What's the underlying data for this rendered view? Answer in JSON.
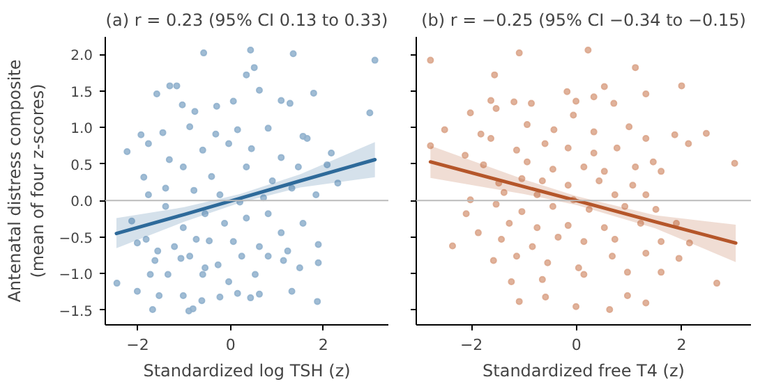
{
  "chart_data": [
    {
      "type": "scatter",
      "title": "(a) r = 0.23 (95% CI 0.13 to 0.33)",
      "xlabel": "Standardized log TSH (z)",
      "ylabel": "Antenatal distress composite\n(mean of four z-scores)",
      "xlim": [
        -2.7,
        3.4
      ],
      "ylim": [
        -1.7,
        2.24
      ],
      "xticks": [
        {
          "value": -2,
          "label": "−2"
        },
        {
          "value": 0,
          "label": "0"
        },
        {
          "value": 2,
          "label": "2"
        }
      ],
      "yticks": [
        {
          "value": -1.5,
          "label": "−1.5"
        },
        {
          "value": -1.0,
          "label": "−1.0"
        },
        {
          "value": -0.5,
          "label": "−0.5"
        },
        {
          "value": 0,
          "label": "0.0"
        },
        {
          "value": 0.5,
          "label": "0.5"
        },
        {
          "value": 1,
          "label": "1.0"
        },
        {
          "value": 1.5,
          "label": "1.5"
        },
        {
          "value": 2,
          "label": "2.0"
        }
      ],
      "grid": false,
      "ref_lines": [
        {
          "axis": "y",
          "value": 0,
          "color": "#bbbbbb"
        }
      ],
      "series": [
        {
          "type": "scatter",
          "marker": "circle",
          "color": "#8fb0cc",
          "x": [
            -0.58,
            0.43,
            1.35,
            3.11,
            0.51,
            0.34,
            -1.31,
            -1.16,
            -1.59,
            1.79,
            3.0,
            -1.04,
            -0.3,
            0.06,
            0.62,
            1.09,
            1.28,
            -0.77,
            -1.93,
            -1.46,
            -0.88,
            -0.32,
            0.15,
            0.81,
            1.56,
            1.65,
            -2.23,
            -1.77,
            -0.6,
            -0.04,
            0.45,
            1.09,
            2.17,
            -1.87,
            -1.32,
            -1.02,
            -0.41,
            0.34,
            0.9,
            1.46,
            2.08,
            2.31,
            -1.77,
            -1.4,
            -0.79,
            -0.23,
            0.2,
            0.71,
            1.32,
            1.84,
            -2.13,
            -1.4,
            -1.02,
            -0.55,
            -0.13,
            0.34,
            0.81,
            1.09,
            1.56,
            -2.45,
            -2.01,
            -1.82,
            -1.57,
            -1.21,
            -0.74,
            -0.46,
            0.06,
            0.62,
            1.23,
            1.89,
            -1.63,
            -1.07,
            -0.88,
            -0.55,
            -0.27,
            0.24,
            0.81,
            1.14,
            1.89,
            -1.73,
            -1.35,
            -0.6,
            -0.04,
            0.53,
            1.49,
            -2.01,
            -1.54,
            -1.02,
            -0.23,
            0.15,
            0.62,
            1.32,
            -1.68,
            -0.9,
            -0.62,
            0.43,
            1.87,
            -0.81
          ],
          "values": [
            2.02,
            2.06,
            2.01,
            1.92,
            1.82,
            1.72,
            1.57,
            1.57,
            1.46,
            1.47,
            1.2,
            1.31,
            1.29,
            1.36,
            1.51,
            1.37,
            1.33,
            1.22,
            0.9,
            0.93,
            1.01,
            0.91,
            0.97,
            0.99,
            0.88,
            0.85,
            0.67,
            0.78,
            0.69,
            0.78,
            0.71,
            0.59,
            0.65,
            0.32,
            0.56,
            0.46,
            0.33,
            0.46,
            0.27,
            0.46,
            0.49,
            0.24,
            0.08,
            0.17,
            0.14,
            0.08,
            -0.02,
            0.04,
            0.17,
            0.08,
            -0.28,
            -0.08,
            -0.37,
            -0.18,
            -0.31,
            -0.24,
            -0.18,
            -0.44,
            -0.31,
            -1.13,
            -0.58,
            -0.53,
            -0.69,
            -0.63,
            -0.53,
            -0.55,
            -0.56,
            -0.63,
            -0.69,
            -0.6,
            -0.82,
            -0.79,
            -0.76,
            -0.92,
            -0.88,
            -0.76,
            -0.76,
            -0.82,
            -0.85,
            -1.01,
            -1.01,
            -1.01,
            -1.11,
            -1.01,
            -0.92,
            -1.24,
            -1.3,
            -1.3,
            -1.32,
            -1.27,
            -1.28,
            -1.24,
            -1.49,
            -1.51,
            -1.37,
            -1.33,
            -1.38,
            -1.48
          ]
        },
        {
          "type": "line",
          "color": "#2e6a9a",
          "x": [
            -2.46,
            -1,
            0.2,
            1.5,
            3.11
          ],
          "values": [
            -0.45,
            -0.19,
            0.03,
            0.27,
            0.56
          ],
          "lower": [
            -0.65,
            -0.29,
            -0.03,
            0.18,
            0.32
          ],
          "upper": [
            -0.24,
            -0.09,
            0.09,
            0.36,
            0.8
          ]
        }
      ]
    },
    {
      "type": "scatter",
      "title": "(b) r = −0.25 (95% CI −0.34 to −0.15)",
      "xlabel": "Standardized free T4 (z)",
      "xlim": [
        -3.05,
        3.32
      ],
      "ylim": [
        -1.7,
        2.24
      ],
      "xticks": [
        {
          "value": -2,
          "label": "−2"
        },
        {
          "value": 0,
          "label": "0"
        },
        {
          "value": 2,
          "label": "2"
        }
      ],
      "yticks": [
        -1.5,
        -1,
        -0.5,
        0,
        0.5,
        1,
        1.5,
        2
      ],
      "tick_labels": "x",
      "grid": false,
      "ref_lines": [
        {
          "axis": "y",
          "value": 0,
          "color": "#bbbbbb"
        }
      ],
      "series": [
        {
          "type": "scatter",
          "marker": "circle",
          "color": "#dba58a",
          "x": [
            -2.78,
            -1.09,
            0.22,
            1.12,
            -1.56,
            2.0,
            1.32,
            0.53,
            -1.63,
            -1.19,
            -0.86,
            -0.18,
            -0.01,
            0.33,
            0.71,
            -2.02,
            -1.53,
            -0.94,
            -0.43,
            -0.06,
            0.33,
            1.0,
            -2.51,
            -1.82,
            -1.63,
            -1.14,
            -0.6,
            -0.16,
            0.33,
            0.77,
            1.32,
            1.87,
            2.13,
            2.47,
            3.01,
            -2.78,
            -2.12,
            -1.77,
            -0.94,
            -0.45,
            0.14,
            0.53,
            1.12,
            1.46,
            -1.48,
            -1.04,
            -0.65,
            -0.16,
            0.43,
            1.07,
            1.61,
            -2.02,
            -1.38,
            -0.75,
            -0.06,
            0.73,
            1.32,
            -2.1,
            -1.53,
            -1.04,
            -0.45,
            0.24,
            0.92,
            1.51,
            -1.28,
            -0.75,
            -0.16,
            0.53,
            1.22,
            1.9,
            -2.36,
            -1.87,
            -1.43,
            -0.84,
            -0.35,
            0.14,
            0.73,
            1.61,
            2.15,
            -1.58,
            -1.14,
            -0.55,
            0.04,
            0.68,
            1.32,
            1.95,
            -1.24,
            -0.65,
            0.14,
            0.97,
            1.61,
            2.67,
            -1.09,
            -0.59,
            -0.01,
            0.63,
            0.97,
            1.32
          ],
          "values": [
            1.92,
            2.02,
            2.06,
            1.82,
            1.72,
            1.57,
            1.46,
            1.56,
            1.37,
            1.35,
            1.33,
            1.49,
            1.36,
            1.42,
            1.33,
            1.2,
            1.26,
            1.04,
            0.97,
            1.17,
            0.94,
            1.01,
            0.97,
            0.91,
            0.85,
            0.69,
            0.78,
            0.72,
            0.65,
            0.72,
            0.85,
            0.9,
            0.78,
            0.92,
            0.51,
            0.75,
            0.62,
            0.49,
            0.53,
            0.43,
            0.46,
            0.4,
            0.46,
            0.53,
            0.24,
            0.3,
            0.27,
            0.21,
            0.27,
            0.21,
            0.4,
            0.01,
            0.11,
            0.08,
            0.01,
            0.08,
            0.08,
            -0.18,
            -0.05,
            -0.15,
            -0.08,
            -0.12,
            -0.08,
            -0.12,
            -0.31,
            -0.37,
            -0.34,
            -0.37,
            -0.31,
            -0.31,
            -0.62,
            -0.44,
            -0.53,
            -0.63,
            -0.5,
            -0.56,
            -0.53,
            -0.56,
            -0.58,
            -0.82,
            -0.76,
            -0.85,
            -0.92,
            -0.76,
            -0.72,
            -0.79,
            -1.11,
            -1.08,
            -1.01,
            -0.98,
            -0.98,
            -1.13,
            -1.38,
            -1.32,
            -1.45,
            -1.49,
            -1.3,
            -1.4
          ]
        },
        {
          "type": "line",
          "color": "#b5562a",
          "x": [
            -2.78,
            -1,
            0,
            1.5,
            3.03
          ],
          "values": [
            0.53,
            0.19,
            0.0,
            -0.29,
            -0.58
          ],
          "lower": [
            0.31,
            0.09,
            -0.06,
            -0.38,
            -0.84
          ],
          "upper": [
            0.75,
            0.29,
            0.06,
            -0.2,
            -0.33
          ]
        }
      ]
    }
  ]
}
